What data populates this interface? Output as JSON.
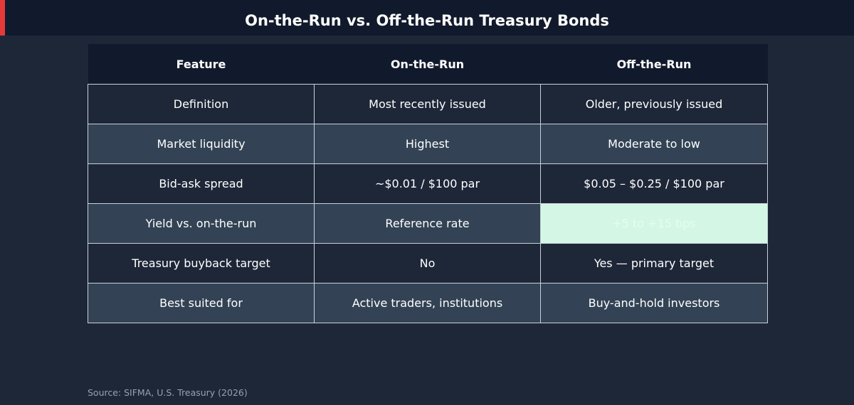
{
  "title": "On-the-Run vs. Off-the-Run Treasury Bonds",
  "colors": {
    "accent": "#e53a3a",
    "header_bg": "#111a2c",
    "page_bg": "#1e2738",
    "alt_row_bg": "#334355",
    "highlight_cell": "#d3f7e4"
  },
  "table": {
    "headers": [
      "Feature",
      "On-the-Run",
      "Off-the-Run"
    ],
    "rows": [
      [
        "Definition",
        "Most recently issued",
        "Older, previously issued"
      ],
      [
        "Market liquidity",
        "Highest",
        "Moderate to low"
      ],
      [
        "Bid-ask spread",
        "~$0.01 / $100 par",
        "$0.05 – $0.25 / $100 par"
      ],
      [
        "Yield vs. on-the-run",
        "Reference rate",
        "+5 to +15 bps"
      ],
      [
        "Treasury buyback target",
        "No",
        "Yes — primary target"
      ],
      [
        "Best suited for",
        "Active traders, institutions",
        "Buy-and-hold investors"
      ]
    ]
  },
  "source": "Source: SIFMA, U.S. Treasury (2026)"
}
